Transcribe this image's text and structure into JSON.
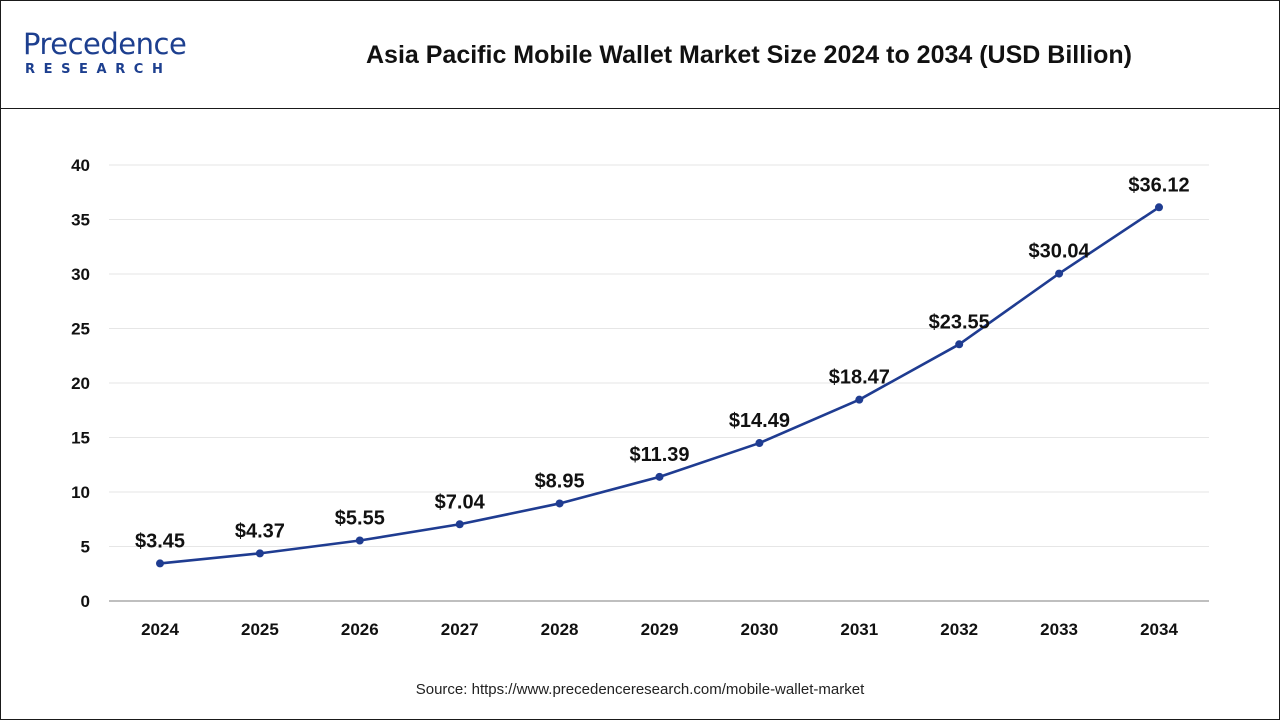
{
  "brand": {
    "logo_main": "Precedence",
    "logo_sub": "RESEARCH"
  },
  "colors": {
    "line": "#1f3c91",
    "grid": "#e6e6e6",
    "axis": "#999999",
    "text": "#111111"
  },
  "source": "Source: https://www.precedenceresearch.com/mobile-wallet-market",
  "chart_data": {
    "type": "line",
    "title": "Asia Pacific Mobile Wallet Market Size 2024 to 2034 (USD Billion)",
    "xlabel": "",
    "ylabel": "",
    "categories": [
      "2024",
      "2025",
      "2026",
      "2027",
      "2028",
      "2029",
      "2030",
      "2031",
      "2032",
      "2033",
      "2034"
    ],
    "series": [
      {
        "values": [
          3.45,
          4.37,
          5.55,
          7.04,
          8.95,
          11.39,
          14.49,
          18.47,
          23.55,
          30.04,
          36.12
        ],
        "labels": [
          "$3.45",
          "$4.37",
          "$5.55",
          "$7.04",
          "$8.95",
          "$11.39",
          "$14.49",
          "$18.47",
          "$23.55",
          "$30.04",
          "$36.12"
        ]
      }
    ],
    "ylim": [
      0,
      40
    ],
    "yticks": [
      0,
      5,
      10,
      15,
      20,
      25,
      30,
      35,
      40
    ],
    "grid": true,
    "legend": "none"
  }
}
